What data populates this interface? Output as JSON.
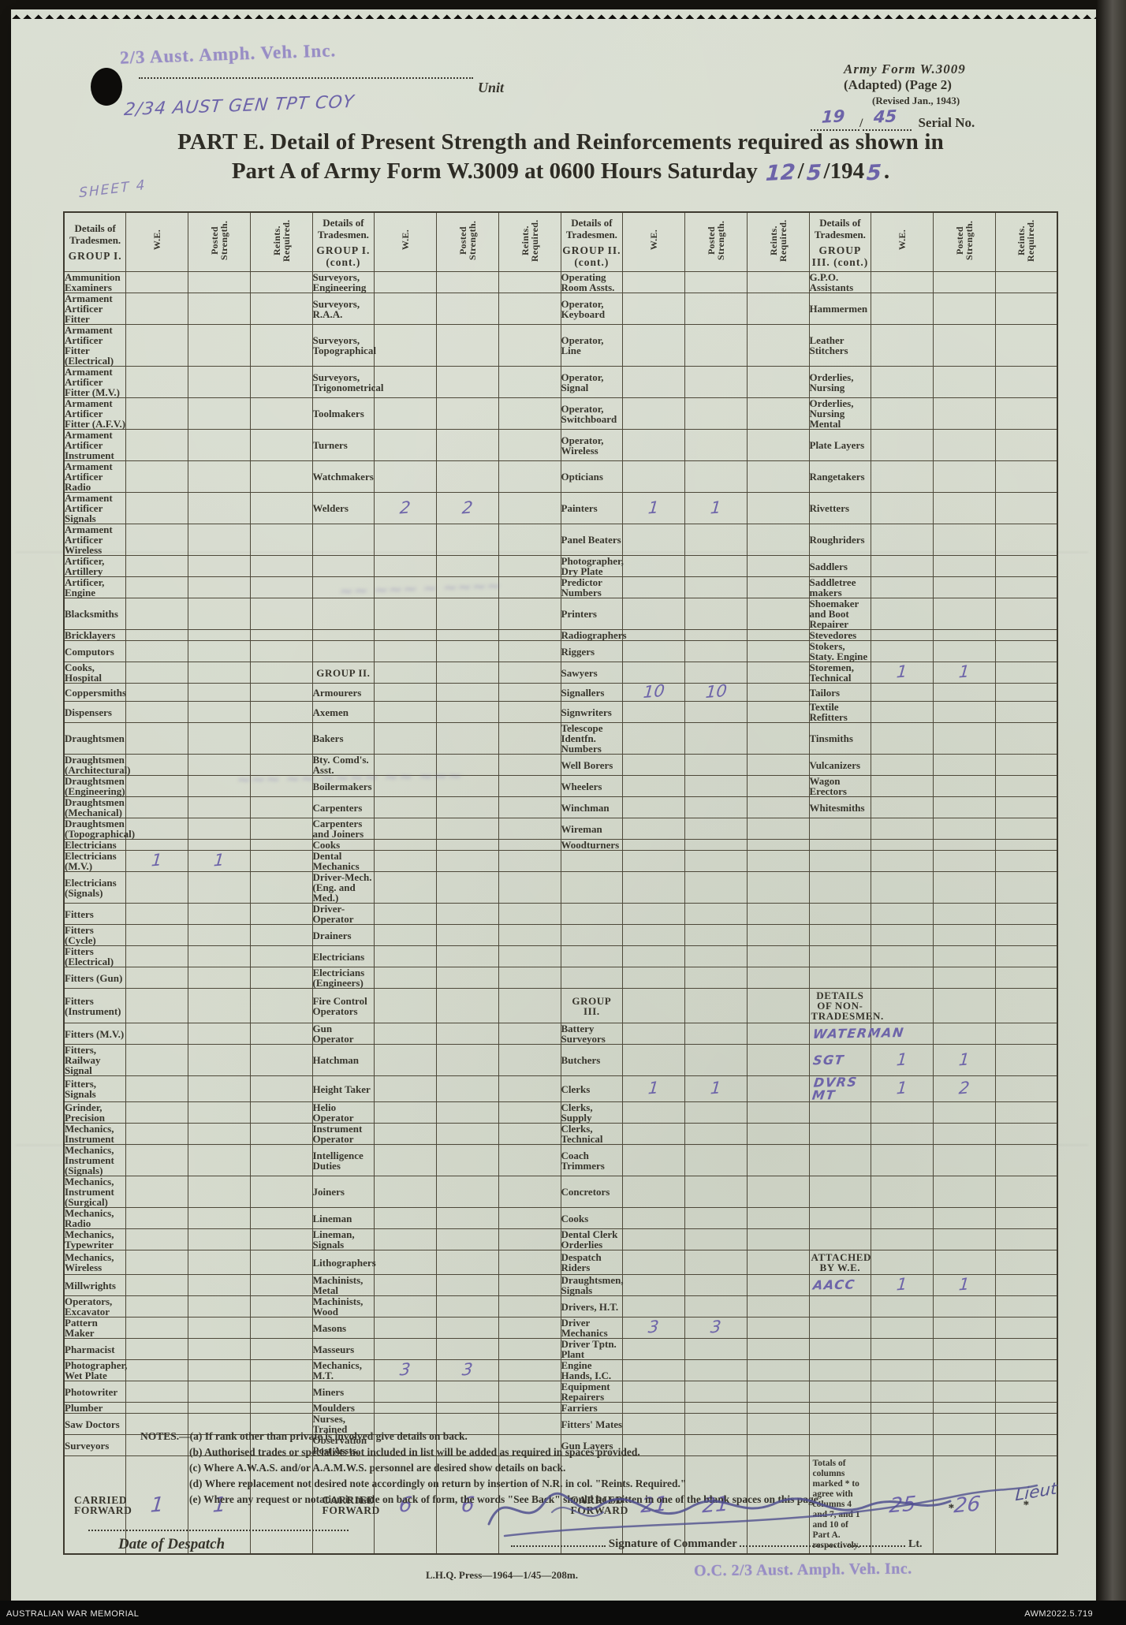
{
  "archive_bar": {
    "left": "AUSTRALIAN WAR MEMORIAL",
    "right": "AWM2022.5.719"
  },
  "stamps": {
    "unit_stamp": "2/3 Aust. Amph. Veh. Inc.",
    "unit_handwritten": "2/34 AUST GEN TPT COY",
    "sheet_note": "SHEET 4",
    "oc_stamp": "O.C. 2/3 Aust. Amph. Veh. Inc.",
    "signature_rank_handwritten": "Lieut"
  },
  "form_header": {
    "unit_label": "Unit",
    "form_name_line1": "Army Form W.3009",
    "form_name_line2": "(Adapted)  (Page 2)",
    "form_name_line3": "(Revised Jan., 1943)",
    "serial_left": "19",
    "serial_separator": "/",
    "serial_right": "45",
    "serial_label": "Serial No."
  },
  "title": {
    "line1": "PART E.  Detail of Present Strength and Reinforcements required as shown in",
    "line2_printed": "Part A of Army Form W.3009 at 0600 Hours Saturday",
    "date_day": "12",
    "date_sep1": "/",
    "date_month": "5",
    "date_sep2": "/194",
    "date_year_hw": "5",
    "date_end": "."
  },
  "table": {
    "column_headers": {
      "details_l1": "Details of",
      "details_l2": "Tradesmen.",
      "we": "W.E.",
      "posted": "Posted Strength.",
      "reints": "Reints. Required."
    },
    "groups": [
      {
        "name": "GROUP I."
      },
      {
        "name": "GROUP I. (cont.)"
      },
      {
        "name": "GROUP II. (cont.)"
      },
      {
        "name": "GROUP III. (cont.)"
      }
    ],
    "rows": [
      [
        {
          "l": "Ammunition Examiners"
        },
        {
          "l": "Surveyors, Engineering"
        },
        {
          "l": "Operating Room Assts."
        },
        {
          "l": "G.P.O. Assistants"
        }
      ],
      [
        {
          "l": "Armament Artificer Fitter"
        },
        {
          "l": "Surveyors, R.A.A."
        },
        {
          "l": "Operator, Keyboard"
        },
        {
          "l": "Hammermen"
        }
      ],
      [
        {
          "l": "Armament Artificer Fitter (Electrical)"
        },
        {
          "l": "Surveyors, Topographical"
        },
        {
          "l": "Operator, Line"
        },
        {
          "l": "Leather Stitchers"
        }
      ],
      [
        {
          "l": "Armament Artificer Fitter (M.V.)"
        },
        {
          "l": "Surveyors, Trigonometrical"
        },
        {
          "l": "Operator, Signal"
        },
        {
          "l": "Orderlies, Nursing"
        }
      ],
      [
        {
          "l": "Armament Artificer Fitter (A.F.V.)"
        },
        {
          "l": "Toolmakers"
        },
        {
          "l": "Operator, Switchboard"
        },
        {
          "l": "Orderlies, Nursing Mental"
        }
      ],
      [
        {
          "l": "Armament Artificer Instrument"
        },
        {
          "l": "Turners"
        },
        {
          "l": "Operator, Wireless"
        },
        {
          "l": "Plate Layers"
        }
      ],
      [
        {
          "l": "Armament Artificer Radio"
        },
        {
          "l": "Watchmakers"
        },
        {
          "l": "Opticians"
        },
        {
          "l": "Rangetakers"
        }
      ],
      [
        {
          "l": "Armament Artificer Signals"
        },
        {
          "l": "Welders",
          "we": "2",
          "ps": "2"
        },
        {
          "l": "Painters",
          "we": "1",
          "ps": "1"
        },
        {
          "l": "Rivetters"
        }
      ],
      [
        {
          "l": "Armament Artificer Wireless"
        },
        {},
        {
          "l": "Panel Beaters"
        },
        {
          "l": "Roughriders"
        }
      ],
      [
        {
          "l": "Artificer, Artillery"
        },
        {},
        {
          "l": "Photographer, Dry Plate"
        },
        {
          "l": "Saddlers"
        }
      ],
      [
        {
          "l": "Artificer, Engine"
        },
        {},
        {
          "l": "Predictor Numbers"
        },
        {
          "l": "Saddletree makers"
        }
      ],
      [
        {
          "l": "Blacksmiths"
        },
        {},
        {
          "l": "Printers"
        },
        {
          "l": "Shoemaker and Boot Repairer"
        }
      ],
      [
        {
          "l": "Bricklayers"
        },
        {},
        {
          "l": "Radiographers"
        },
        {
          "l": "Stevedores"
        }
      ],
      [
        {
          "l": "Computors"
        },
        {},
        {
          "l": "Riggers"
        },
        {
          "l": "Stokers, Staty. Engine"
        }
      ],
      [
        {
          "l": "Cooks, Hospital"
        },
        {
          "l": "GROUP II.",
          "t": "h"
        },
        {
          "l": "Sawyers"
        },
        {
          "l": "Storemen, Technical",
          "we": "1",
          "ps": "1"
        }
      ],
      [
        {
          "l": "Coppersmiths"
        },
        {
          "l": "Armourers"
        },
        {
          "l": "Signallers",
          "we": "10",
          "ps": "10"
        },
        {
          "l": "Tailors"
        }
      ],
      [
        {
          "l": "Dispensers"
        },
        {
          "l": "Axemen"
        },
        {
          "l": "Signwriters"
        },
        {
          "l": "Textile Refitters"
        }
      ],
      [
        {
          "l": "Draughtsmen"
        },
        {
          "l": "Bakers"
        },
        {
          "l": "Telescope Identfn. Numbers"
        },
        {
          "l": "Tinsmiths"
        }
      ],
      [
        {
          "l": "Draughtsmen (Architectural)"
        },
        {
          "l": "Bty. Comd's. Asst."
        },
        {
          "l": "Well Borers"
        },
        {
          "l": "Vulcanizers"
        }
      ],
      [
        {
          "l": "Draughtsmen (Engineering)"
        },
        {
          "l": "Boilermakers"
        },
        {
          "l": "Wheelers"
        },
        {
          "l": "Wagon Erectors"
        }
      ],
      [
        {
          "l": "Draughtsmen (Mechanical)"
        },
        {
          "l": "Carpenters"
        },
        {
          "l": "Winchman"
        },
        {
          "l": "Whitesmiths"
        }
      ],
      [
        {
          "l": "Draughtsmen (Topographical)"
        },
        {
          "l": "Carpenters and Joiners"
        },
        {
          "l": "Wireman"
        },
        {}
      ],
      [
        {
          "l": "Electricians"
        },
        {
          "l": "Cooks"
        },
        {
          "l": "Woodturners"
        },
        {}
      ],
      [
        {
          "l": "Electricians (M.V.)",
          "we": "1",
          "ps": "1"
        },
        {
          "l": "Dental Mechanics"
        },
        {},
        {}
      ],
      [
        {
          "l": "Electricians (Signals)"
        },
        {
          "l": "Driver-Mech. (Eng. and Med.)"
        },
        {},
        {}
      ],
      [
        {
          "l": "Fitters"
        },
        {
          "l": "Driver-Operator"
        },
        {},
        {}
      ],
      [
        {
          "l": "Fitters (Cycle)"
        },
        {
          "l": "Drainers"
        },
        {},
        {}
      ],
      [
        {
          "l": "Fitters (Electrical)"
        },
        {
          "l": "Electricians"
        },
        {},
        {}
      ],
      [
        {
          "l": "Fitters (Gun)"
        },
        {
          "l": "Electricians (Engineers)"
        },
        {},
        {}
      ],
      [
        {
          "l": "Fitters (Instrument)"
        },
        {
          "l": "Fire Control Operators"
        },
        {
          "l": "GROUP III.",
          "t": "h"
        },
        {
          "l": "DETAILS OF NON-TRADESMEN.",
          "t": "h"
        }
      ],
      [
        {
          "l": "Fitters (M.V.)"
        },
        {
          "l": "Gun Operator"
        },
        {
          "l": "Battery Surveyors"
        },
        {
          "l": "WATERMAN",
          "t": "hw"
        }
      ],
      [
        {
          "l": "Fitters, Railway Signal"
        },
        {
          "l": "Hatchman"
        },
        {
          "l": "Butchers"
        },
        {
          "l": "SGT",
          "t": "hw",
          "we": "1",
          "ps": "1"
        }
      ],
      [
        {
          "l": "Fitters, Signals"
        },
        {
          "l": "Height Taker"
        },
        {
          "l": "Clerks",
          "we": "1",
          "ps": "1"
        },
        {
          "l": "DVRS MT",
          "t": "hw",
          "we": "1",
          "ps": "2"
        }
      ],
      [
        {
          "l": "Grinder, Precision"
        },
        {
          "l": "Helio Operator"
        },
        {
          "l": "Clerks, Supply"
        },
        {}
      ],
      [
        {
          "l": "Mechanics, Instrument"
        },
        {
          "l": "Instrument Operator"
        },
        {
          "l": "Clerks, Technical"
        },
        {}
      ],
      [
        {
          "l": "Mechanics, Instrument (Signals)"
        },
        {
          "l": "Intelligence Duties"
        },
        {
          "l": "Coach Trimmers"
        },
        {}
      ],
      [
        {
          "l": "Mechanics, Instrument (Surgical)"
        },
        {
          "l": "Joiners"
        },
        {
          "l": "Concretors"
        },
        {}
      ],
      [
        {
          "l": "Mechanics, Radio"
        },
        {
          "l": "Lineman"
        },
        {
          "l": "Cooks"
        },
        {}
      ],
      [
        {
          "l": "Mechanics, Typewriter"
        },
        {
          "l": "Lineman, Signals"
        },
        {
          "l": "Dental Clerk Orderlies"
        },
        {}
      ],
      [
        {
          "l": "Mechanics, Wireless"
        },
        {
          "l": "Lithographers"
        },
        {
          "l": "Despatch Riders"
        },
        {
          "l": "ATTACHED BY W.E.",
          "t": "h"
        }
      ],
      [
        {
          "l": "Millwrights"
        },
        {
          "l": "Machinists, Metal"
        },
        {
          "l": "Draughtsmen, Signals"
        },
        {
          "l": "AACC",
          "t": "hw",
          "we": "1",
          "ps": "1"
        }
      ],
      [
        {
          "l": "Operators, Excavator"
        },
        {
          "l": "Machinists, Wood"
        },
        {
          "l": "Drivers, H.T."
        },
        {}
      ],
      [
        {
          "l": "Pattern Maker"
        },
        {
          "l": "Masons"
        },
        {
          "l": "Driver Mechanics",
          "we": "3",
          "ps": "3"
        },
        {}
      ],
      [
        {
          "l": "Pharmacist"
        },
        {
          "l": "Masseurs"
        },
        {
          "l": "Driver Tptn. Plant"
        },
        {}
      ],
      [
        {
          "l": "Photographer, Wet Plate"
        },
        {
          "l": "Mechanics, M.T.",
          "we": "3",
          "ps": "3"
        },
        {
          "l": "Engine Hands, I.C."
        },
        {}
      ],
      [
        {
          "l": "Photowriter"
        },
        {
          "l": "Miners"
        },
        {
          "l": "Equipment Repairers"
        },
        {}
      ],
      [
        {
          "l": "Plumber"
        },
        {
          "l": "Moulders"
        },
        {
          "l": "Farriers"
        },
        {}
      ],
      [
        {
          "l": "Saw Doctors"
        },
        {
          "l": "Nurses, Trained"
        },
        {
          "l": "Fitters' Mates"
        },
        {}
      ],
      [
        {
          "l": "Surveyors"
        },
        {
          "l": "Observation Post Assts."
        },
        {
          "l": "Gun Layers"
        },
        {}
      ]
    ],
    "carried_forward": {
      "label": "CARRIED FORWARD",
      "totals_note": "Totals of columns marked * to agree with columns 4 and 7, and 1 and 10 of Part A. respectively.",
      "values": [
        {
          "we": "1",
          "ps": "1"
        },
        {
          "we": "6",
          "ps": "6"
        },
        {
          "we": "21",
          "ps": "21"
        },
        {
          "we": "25",
          "ps": "*26",
          "rr": "*"
        }
      ]
    }
  },
  "notes": {
    "lines": [
      "NOTES.—(a) If rank other than private is involved give details on back.",
      "(b) Authorised trades or specialists not included in list will be added as required in spaces provided.",
      "(c) Where A.W.A.S. and/or A.A.M.W.S. personnel are desired show details on back.",
      "(d) Where replacement not desired note accordingly on return by insertion of N.R. in col. \"Reints. Required.\"",
      "(e) Where any request or notation is made on back of form, the words \"See Back\" should be written in one of the blank spaces on this page."
    ]
  },
  "footer": {
    "despatch_label": "Date of Despatch",
    "signature_label": "Signature of Commander",
    "signature_rank": "Lt.",
    "press_line": "L.H.Q. Press—1964—1/45—208m."
  }
}
